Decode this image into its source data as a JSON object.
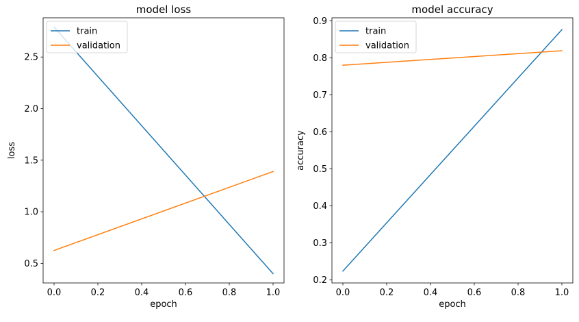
{
  "chart_data": [
    {
      "type": "line",
      "title": "model loss",
      "xlabel": "epoch",
      "ylabel": "loss",
      "xlim": [
        -0.05,
        1.05
      ],
      "ylim": [
        0.31,
        2.88
      ],
      "xticks": [
        0.0,
        0.2,
        0.4,
        0.6,
        0.8,
        1.0
      ],
      "xtick_labels": [
        "0.0",
        "0.2",
        "0.4",
        "0.6",
        "0.8",
        "1.0"
      ],
      "yticks": [
        0.5,
        1.0,
        1.5,
        2.0,
        2.5
      ],
      "ytick_labels": [
        "0.5",
        "1.0",
        "1.5",
        "2.0",
        "2.5"
      ],
      "legend_position": "upper-left",
      "series": [
        {
          "name": "train",
          "color": "#1f77b4",
          "x": [
            0,
            1
          ],
          "y": [
            2.79,
            0.4
          ]
        },
        {
          "name": "validation",
          "color": "#ff7f0e",
          "x": [
            0,
            1
          ],
          "y": [
            0.625,
            1.39
          ]
        }
      ]
    },
    {
      "type": "line",
      "title": "model accuracy",
      "xlabel": "epoch",
      "ylabel": "accuracy",
      "xlim": [
        -0.05,
        1.05
      ],
      "ylim": [
        0.192,
        0.908
      ],
      "xticks": [
        0.0,
        0.2,
        0.4,
        0.6,
        0.8,
        1.0
      ],
      "xtick_labels": [
        "0.0",
        "0.2",
        "0.4",
        "0.6",
        "0.8",
        "1.0"
      ],
      "yticks": [
        0.2,
        0.3,
        0.4,
        0.5,
        0.6,
        0.7,
        0.8,
        0.9
      ],
      "ytick_labels": [
        "0.2",
        "0.3",
        "0.4",
        "0.5",
        "0.6",
        "0.7",
        "0.8",
        "0.9"
      ],
      "legend_position": "upper-left",
      "series": [
        {
          "name": "train",
          "color": "#1f77b4",
          "x": [
            0,
            1
          ],
          "y": [
            0.224,
            0.876
          ]
        },
        {
          "name": "validation",
          "color": "#ff7f0e",
          "x": [
            0,
            1
          ],
          "y": [
            0.78,
            0.819
          ]
        }
      ]
    }
  ]
}
